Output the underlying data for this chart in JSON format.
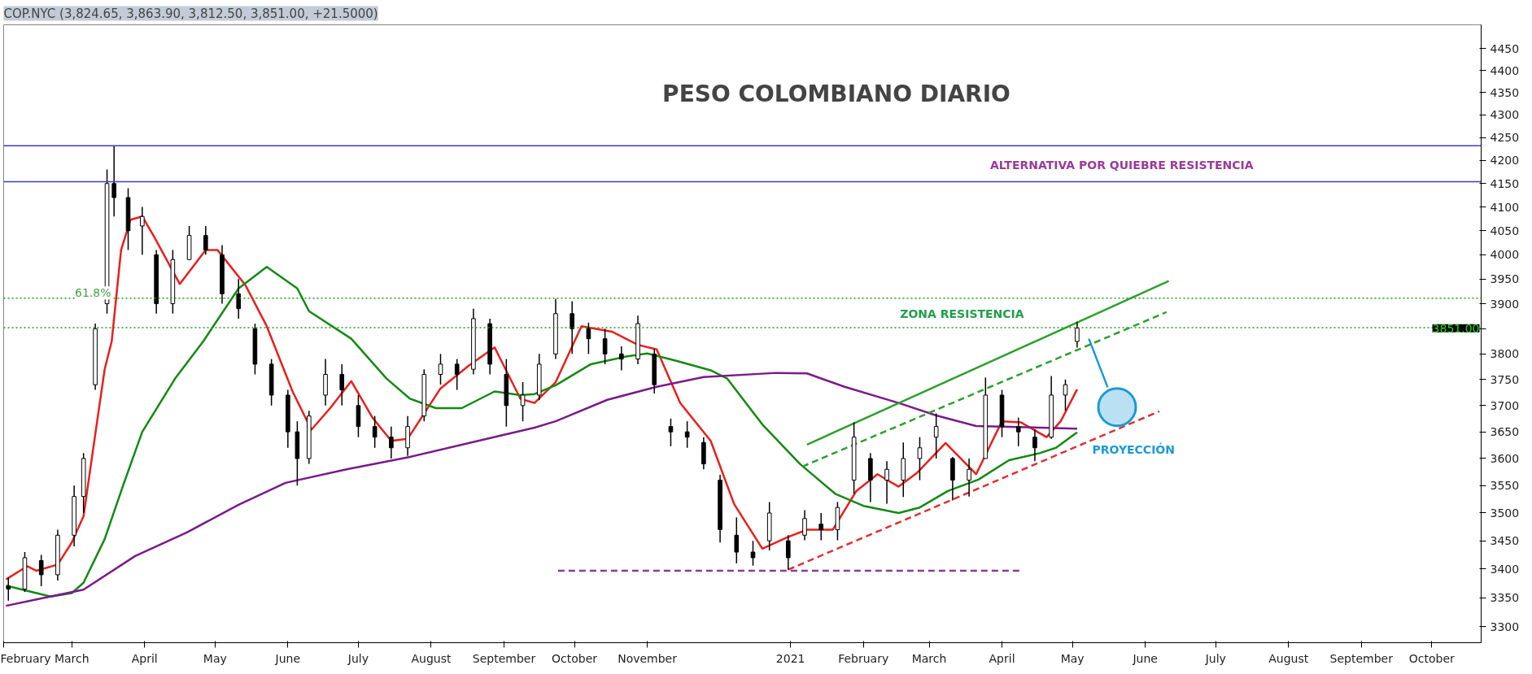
{
  "chart_data": {
    "type": "candlestick",
    "title": "PESO COLOMBIANO DIARIO",
    "subtitle": "COP.NYC (3,824.65, 3,863.90, 3,812.50, 3,851.00, +21.5000)",
    "color": "#000000",
    "log": true,
    "x": [
      "2020-02-03",
      "2020-02-10",
      "2020-02-17",
      "2020-02-24",
      "2020-03-02",
      "2020-03-06",
      "2020-03-11",
      "2020-03-16",
      "2020-03-19",
      "2020-03-25",
      "2020-03-31",
      "2020-04-06",
      "2020-04-13",
      "2020-04-20",
      "2020-04-27",
      "2020-05-04",
      "2020-05-11",
      "2020-05-18",
      "2020-05-25",
      "2020-06-01",
      "2020-06-05",
      "2020-06-10",
      "2020-06-17",
      "2020-06-24",
      "2020-07-01",
      "2020-07-08",
      "2020-07-15",
      "2020-07-22",
      "2020-07-29",
      "2020-08-05",
      "2020-08-12",
      "2020-08-19",
      "2020-08-26",
      "2020-09-02",
      "2020-09-09",
      "2020-09-16",
      "2020-09-23",
      "2020-09-30",
      "2020-10-07",
      "2020-10-14",
      "2020-10-21",
      "2020-10-28",
      "2020-11-04",
      "2020-11-11",
      "2020-11-18",
      "2020-11-25",
      "2020-12-02",
      "2020-12-09",
      "2020-12-16",
      "2020-12-23",
      "2020-12-31",
      "2021-01-07",
      "2021-01-14",
      "2021-01-21",
      "2021-01-28",
      "2021-02-04",
      "2021-02-11",
      "2021-02-18",
      "2021-02-25",
      "2021-03-04",
      "2021-03-11",
      "2021-03-18",
      "2021-03-25",
      "2021-04-01",
      "2021-04-08",
      "2021-04-15",
      "2021-04-22",
      "2021-04-28",
      "2021-05-03"
    ],
    "ohlc": [
      [
        3370,
        3385,
        3345,
        3365
      ],
      [
        3365,
        3430,
        3360,
        3420
      ],
      [
        3415,
        3425,
        3370,
        3390
      ],
      [
        3390,
        3470,
        3380,
        3460
      ],
      [
        3460,
        3550,
        3440,
        3530
      ],
      [
        3530,
        3610,
        3500,
        3600
      ],
      [
        3740,
        3860,
        3730,
        3850
      ],
      [
        3900,
        4180,
        3880,
        4150
      ],
      [
        4150,
        4232,
        4080,
        4120
      ],
      [
        4120,
        4140,
        4010,
        4050
      ],
      [
        4060,
        4100,
        4000,
        4080
      ],
      [
        4000,
        4010,
        3880,
        3900
      ],
      [
        3900,
        4010,
        3880,
        3990
      ],
      [
        3990,
        4060,
        3990,
        4040
      ],
      [
        4040,
        4060,
        4000,
        4010
      ],
      [
        4000,
        4020,
        3900,
        3920
      ],
      [
        3920,
        3950,
        3870,
        3890
      ],
      [
        3850,
        3860,
        3760,
        3780
      ],
      [
        3780,
        3790,
        3700,
        3720
      ],
      [
        3720,
        3730,
        3620,
        3650
      ],
      [
        3650,
        3670,
        3550,
        3600
      ],
      [
        3600,
        3690,
        3590,
        3680
      ],
      [
        3720,
        3790,
        3700,
        3760
      ],
      [
        3760,
        3780,
        3700,
        3730
      ],
      [
        3700,
        3720,
        3640,
        3660
      ],
      [
        3660,
        3680,
        3620,
        3640
      ],
      [
        3640,
        3660,
        3600,
        3620
      ],
      [
        3620,
        3680,
        3605,
        3660
      ],
      [
        3680,
        3770,
        3670,
        3760
      ],
      [
        3760,
        3800,
        3740,
        3780
      ],
      [
        3780,
        3790,
        3730,
        3760
      ],
      [
        3770,
        3890,
        3760,
        3870
      ],
      [
        3860,
        3870,
        3760,
        3780
      ],
      [
        3760,
        3790,
        3660,
        3700
      ],
      [
        3700,
        3745,
        3670,
        3720
      ],
      [
        3720,
        3800,
        3710,
        3780
      ],
      [
        3800,
        3910,
        3790,
        3880
      ],
      [
        3880,
        3905,
        3800,
        3850
      ],
      [
        3850,
        3862,
        3800,
        3830
      ],
      [
        3830,
        3850,
        3780,
        3800
      ],
      [
        3800,
        3815,
        3768,
        3790
      ],
      [
        3790,
        3876,
        3780,
        3860
      ],
      [
        3800,
        3810,
        3723,
        3740
      ],
      [
        3660,
        3675,
        3623,
        3650
      ],
      [
        3650,
        3670,
        3620,
        3640
      ],
      [
        3630,
        3640,
        3580,
        3590
      ],
      [
        3560,
        3570,
        3447,
        3470
      ],
      [
        3460,
        3492,
        3410,
        3430
      ],
      [
        3430,
        3450,
        3406,
        3420
      ],
      [
        3450,
        3520,
        3433,
        3500
      ],
      [
        3450,
        3460,
        3399,
        3420
      ],
      [
        3460,
        3505,
        3451,
        3490
      ],
      [
        3480,
        3500,
        3451,
        3470
      ],
      [
        3470,
        3520,
        3451,
        3510
      ],
      [
        3560,
        3668,
        3535,
        3640
      ],
      [
        3600,
        3610,
        3520,
        3560
      ],
      [
        3560,
        3595,
        3517,
        3580
      ],
      [
        3560,
        3630,
        3529,
        3600
      ],
      [
        3600,
        3640,
        3560,
        3620
      ],
      [
        3640,
        3685,
        3600,
        3660
      ],
      [
        3600,
        3603,
        3523,
        3560
      ],
      [
        3560,
        3600,
        3530,
        3580
      ],
      [
        3600,
        3754,
        3600,
        3720
      ],
      [
        3720,
        3730,
        3640,
        3660
      ],
      [
        3660,
        3677,
        3623,
        3650
      ],
      [
        3640,
        3655,
        3595,
        3620
      ],
      [
        3640,
        3757,
        3637,
        3720
      ],
      [
        3720,
        3750,
        3690,
        3740
      ],
      [
        3824.65,
        3863.9,
        3812.5,
        3851.0
      ]
    ],
    "series": [
      {
        "type": "line",
        "color": "#e8201c",
        "line_style": "solid",
        "x": [
          "2020-02-02",
          "2020-02-11",
          "2020-02-15",
          "2020-02-24",
          "2020-03-01",
          "2020-03-06",
          "2020-03-10",
          "2020-03-15",
          "2020-03-18",
          "2020-03-22",
          "2020-03-26",
          "2020-03-31",
          "2020-04-05",
          "2020-04-16",
          "2020-04-27",
          "2020-05-02",
          "2020-05-14",
          "2020-05-23",
          "2020-06-03",
          "2020-06-11",
          "2020-06-19",
          "2020-06-28",
          "2020-07-07",
          "2020-07-15",
          "2020-07-22",
          "2020-08-05",
          "2020-08-17",
          "2020-08-28",
          "2020-09-08",
          "2020-09-14",
          "2020-09-23",
          "2020-10-04",
          "2020-10-17",
          "2020-10-28",
          "2020-11-05",
          "2020-11-15",
          "2020-11-28",
          "2020-12-08",
          "2020-12-20",
          "2020-12-31",
          "2021-01-08",
          "2021-01-19",
          "2021-01-24",
          "2021-01-29",
          "2021-02-07",
          "2021-02-16",
          "2021-02-24",
          "2021-03-08",
          "2021-03-21",
          "2021-04-01",
          "2021-04-09",
          "2021-04-20",
          "2021-04-26",
          "2021-05-03"
        ],
        "values": [
          3382,
          3405,
          3397,
          3408,
          3447,
          3494,
          3615,
          3770,
          3825,
          4010,
          4073,
          4080,
          4038,
          3940,
          4010,
          4010,
          3937,
          3855,
          3727,
          3654,
          3695,
          3747,
          3677,
          3633,
          3637,
          3733,
          3777,
          3813,
          3713,
          3705,
          3745,
          3855,
          3844,
          3818,
          3809,
          3705,
          3633,
          3516,
          3436,
          3457,
          3470,
          3470,
          3505,
          3540,
          3571,
          3548,
          3574,
          3629,
          3571,
          3670,
          3668,
          3640,
          3670,
          3731
        ]
      },
      {
        "type": "line",
        "color": "#138a13",
        "line_style": "solid",
        "x": [
          "2020-02-02",
          "2020-02-09",
          "2020-02-21",
          "2020-03-01",
          "2020-03-06",
          "2020-03-15",
          "2020-03-23",
          "2020-03-31",
          "2020-04-14",
          "2020-04-26",
          "2020-05-11",
          "2020-05-23",
          "2020-06-05",
          "2020-06-10",
          "2020-06-28",
          "2020-07-13",
          "2020-07-23",
          "2020-08-03",
          "2020-08-14",
          "2020-08-28",
          "2020-09-08",
          "2020-09-14",
          "2020-09-23",
          "2020-10-08",
          "2020-10-23",
          "2020-11-01",
          "2020-11-13",
          "2020-11-28",
          "2020-12-05",
          "2020-12-20",
          "2021-01-05",
          "2021-01-20",
          "2021-02-01",
          "2021-02-16",
          "2021-02-25",
          "2021-03-09",
          "2021-03-22",
          "2021-04-04",
          "2021-04-17",
          "2021-04-24",
          "2021-05-03"
        ],
        "values": [
          3371,
          3364,
          3352,
          3358,
          3376,
          3453,
          3552,
          3650,
          3752,
          3825,
          3931,
          3975,
          3931,
          3885,
          3830,
          3752,
          3713,
          3695,
          3695,
          3727,
          3720,
          3722,
          3739,
          3780,
          3795,
          3801,
          3787,
          3768,
          3752,
          3664,
          3590,
          3535,
          3513,
          3500,
          3510,
          3540,
          3561,
          3597,
          3610,
          3620,
          3649
        ]
      },
      {
        "type": "line",
        "color": "#7a1a8a",
        "line_style": "solid",
        "x": [
          "2020-02-02",
          "2020-02-15",
          "2020-03-06",
          "2020-03-28",
          "2020-04-19",
          "2020-05-11",
          "2020-05-31",
          "2020-06-26",
          "2020-07-23",
          "2020-08-21",
          "2020-09-14",
          "2020-09-23",
          "2020-10-15",
          "2020-11-05",
          "2020-11-25",
          "2020-12-26",
          "2021-01-08",
          "2021-01-24",
          "2021-02-16",
          "2021-03-04",
          "2021-03-21",
          "2021-04-17",
          "2021-05-03"
        ],
        "values": [
          3336,
          3347,
          3364,
          3423,
          3465,
          3515,
          3555,
          3580,
          3603,
          3633,
          3658,
          3670,
          3711,
          3736,
          3755,
          3763,
          3762,
          3736,
          3705,
          3681,
          3661,
          3658,
          3656
        ]
      },
      {
        "type": "line",
        "color": "#2ca02c",
        "line_style": "solid",
        "x": [
          "2021-01-08",
          "2021-06-11"
        ],
        "values": [
          3626,
          3946
        ]
      },
      {
        "type": "line",
        "color": "#2ca02c",
        "line_style": "dashed",
        "x": [
          "2021-01-06",
          "2021-06-10"
        ],
        "values": [
          3585,
          3883
        ]
      },
      {
        "type": "line",
        "color": "#e03030",
        "line_style": "dashed",
        "x": [
          "2020-12-31",
          "2021-06-07"
        ],
        "values": [
          3399,
          3689
        ]
      },
      {
        "type": "line",
        "color": "#8a3a9a",
        "line_style": "dashed",
        "x": [
          "2020-09-24",
          "2021-04-09"
        ],
        "values": [
          3397,
          3397
        ]
      },
      {
        "type": "line",
        "color": "#1a9ad6",
        "line_style": "solid",
        "x": [
          "2021-05-08",
          "2021-05-16"
        ],
        "values": [
          3830,
          3735
        ]
      },
      {
        "type": "scatter",
        "color": "#1a9ad6",
        "marker": "circle",
        "x": [
          "2021-05-20"
        ],
        "values": [
          3697
        ]
      }
    ],
    "ref_lines": [
      {
        "axis": "y",
        "value": 4232,
        "color": "#3a3acc",
        "line_style": "solid"
      },
      {
        "axis": "y",
        "value": 4154,
        "color": "#3a3acc",
        "line_style": "solid"
      },
      {
        "axis": "y",
        "value": 3911,
        "color": "#1f9a1f",
        "line_style": "dotted"
      },
      {
        "axis": "y",
        "value": 3852,
        "color": "#1f9a1f",
        "line_style": "dotted"
      }
    ],
    "annotations": [
      "61.8%",
      "ALTERNATIVA POR QUIEBRE RESISTENCIA",
      "ZONA RESISTENCIA",
      "PROYECCIÓN",
      "3851.00"
    ],
    "xlim": [
      "2020-02-01",
      "2021-10-22"
    ],
    "xticks": [
      {
        "value": "2020-02-01",
        "label": "February"
      },
      {
        "value": "2020-03-01",
        "label": "March"
      },
      {
        "value": "2020-04-01",
        "label": "April"
      },
      {
        "value": "2020-05-01",
        "label": "May"
      },
      {
        "value": "2020-06-01",
        "label": "June"
      },
      {
        "value": "2020-07-01",
        "label": "July"
      },
      {
        "value": "2020-08-01",
        "label": "August"
      },
      {
        "value": "2020-09-01",
        "label": "September"
      },
      {
        "value": "2020-10-01",
        "label": "October"
      },
      {
        "value": "2020-11-01",
        "label": "November"
      },
      {
        "value": "2021-01-01",
        "label": "2021"
      },
      {
        "value": "2021-02-01",
        "label": "February"
      },
      {
        "value": "2021-03-01",
        "label": "March"
      },
      {
        "value": "2021-04-01",
        "label": "April"
      },
      {
        "value": "2021-05-01",
        "label": "May"
      },
      {
        "value": "2021-06-01",
        "label": "June"
      },
      {
        "value": "2021-07-01",
        "label": "July"
      },
      {
        "value": "2021-08-01",
        "label": "August"
      },
      {
        "value": "2021-09-01",
        "label": "September"
      },
      {
        "value": "2021-10-01",
        "label": "October"
      }
    ],
    "ylim": [
      3273,
      4505
    ],
    "yticks": [
      3300,
      3350,
      3400,
      3450,
      3500,
      3550,
      3600,
      3650,
      3700,
      3750,
      3800,
      {
        "value": 3850,
        "label": null
      },
      3900,
      3950,
      4000,
      4050,
      4100,
      4150,
      4200,
      4250,
      4300,
      4350,
      4400,
      4450
    ]
  }
}
